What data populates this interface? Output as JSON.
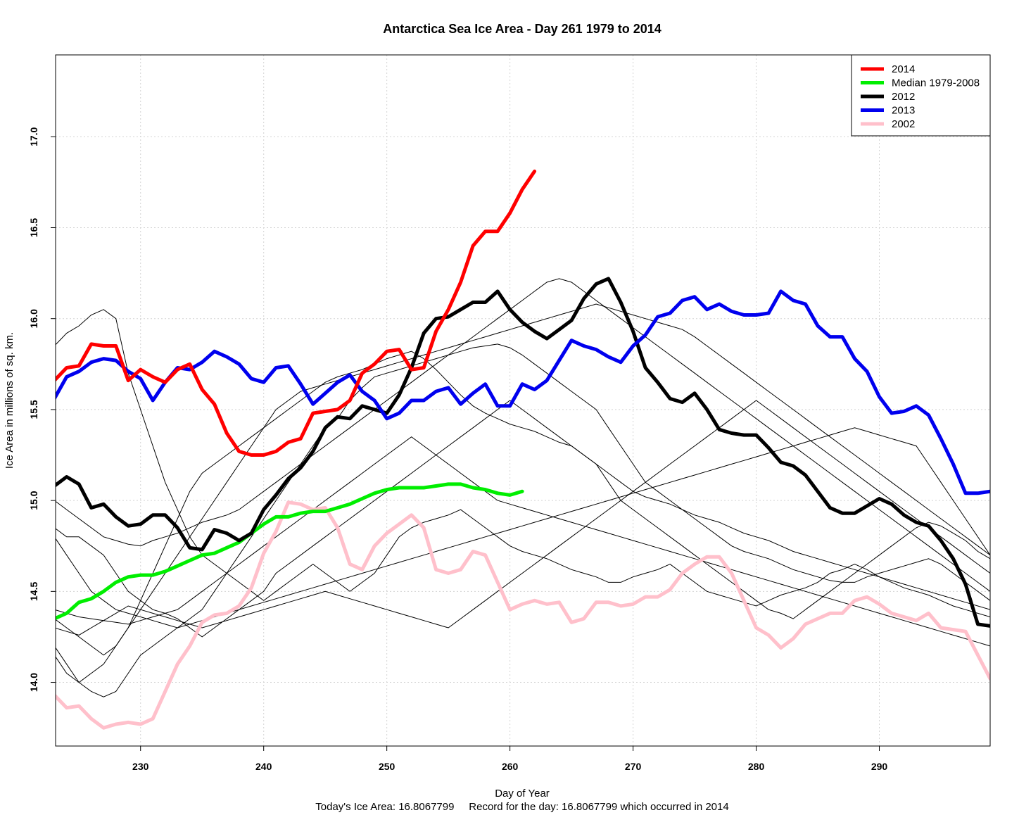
{
  "chart_data": {
    "type": "line",
    "title": "Antarctica Sea Ice Area - Day 261 1979 to 2014",
    "xlabel": "Day of Year",
    "ylabel": "Ice Area in millions of sq. km.",
    "footer": "Today's Ice Area: 16.8067799     Record for the day: 16.8067799 which occurred in 2014",
    "xlim": [
      223.1,
      299
    ],
    "ylim": [
      13.65,
      17.45
    ],
    "x_ticks": [
      230,
      240,
      250,
      260,
      270,
      280,
      290
    ],
    "x_tick_labels": [
      "230",
      "240",
      "250",
      "260",
      "270",
      "280",
      "290"
    ],
    "y_ticks": [
      14.0,
      14.5,
      15.0,
      15.5,
      16.0,
      16.5,
      17.0
    ],
    "y_tick_labels": [
      "14.0",
      "14.5",
      "15.0",
      "15.5",
      "16.0",
      "16.5",
      "17.0"
    ],
    "grid": true,
    "legend_position": "top-right",
    "legend": [
      {
        "label": "2014",
        "color": "#ff0000",
        "width": "thick"
      },
      {
        "label": "Median 1979-2008",
        "color": "#00ee00",
        "width": "thick"
      },
      {
        "label": "2012",
        "color": "#000000",
        "width": "thick"
      },
      {
        "label": "2013",
        "color": "#0000ee",
        "width": "thick"
      },
      {
        "label": "2002",
        "color": "#ffc0cb",
        "width": "thick"
      }
    ],
    "series": [
      {
        "name": "2014",
        "color": "#ff0000",
        "start_day": 223,
        "values": [
          15.66,
          15.73,
          15.74,
          15.86,
          15.85,
          15.85,
          15.66,
          15.72,
          15.68,
          15.65,
          15.72,
          15.75,
          15.61,
          15.53,
          15.37,
          15.27,
          15.25,
          15.25,
          15.27,
          15.32,
          15.34,
          15.48,
          15.49,
          15.5,
          15.55,
          15.7,
          15.75,
          15.82,
          15.83,
          15.72,
          15.73,
          15.93,
          16.05,
          16.2,
          16.4,
          16.48,
          16.48,
          16.58,
          16.71,
          16.81
        ]
      },
      {
        "name": "Median 1979-2008",
        "color": "#00ee00",
        "start_day": 223,
        "values": [
          14.35,
          14.38,
          14.44,
          14.46,
          14.5,
          14.55,
          14.58,
          14.59,
          14.59,
          14.61,
          14.64,
          14.67,
          14.7,
          14.71,
          14.74,
          14.77,
          14.82,
          14.87,
          14.91,
          14.91,
          14.93,
          14.94,
          14.94,
          14.96,
          14.98,
          15.01,
          15.04,
          15.06,
          15.07,
          15.07,
          15.07,
          15.08,
          15.09,
          15.09,
          15.07,
          15.06,
          15.04,
          15.03,
          15.05
        ]
      },
      {
        "name": "2012",
        "color": "#000000",
        "start_day": 223,
        "values": [
          15.08,
          15.13,
          15.09,
          14.96,
          14.98,
          14.91,
          14.86,
          14.87,
          14.92,
          14.92,
          14.85,
          14.74,
          14.73,
          14.84,
          14.82,
          14.78,
          14.82,
          14.95,
          15.03,
          15.12,
          15.18,
          15.27,
          15.4,
          15.46,
          15.45,
          15.52,
          15.5,
          15.48,
          15.58,
          15.73,
          15.92,
          16.0,
          16.01,
          16.05,
          16.09,
          16.09,
          16.15,
          16.05,
          15.98,
          15.93,
          15.89,
          15.94,
          15.99,
          16.11,
          16.19,
          16.22,
          16.09,
          15.93,
          15.73,
          15.65,
          15.56,
          15.54,
          15.59,
          15.5,
          15.39,
          15.37,
          15.36,
          15.36,
          15.29,
          15.21,
          15.19,
          15.14,
          15.05,
          14.96,
          14.93,
          14.93,
          14.97,
          15.01,
          14.98,
          14.92,
          14.88,
          14.86,
          14.78,
          14.68,
          14.54,
          14.32,
          14.31
        ]
      },
      {
        "name": "2013",
        "color": "#0000ee",
        "start_day": 223,
        "values": [
          15.56,
          15.68,
          15.71,
          15.76,
          15.78,
          15.77,
          15.71,
          15.67,
          15.55,
          15.65,
          15.73,
          15.72,
          15.76,
          15.82,
          15.79,
          15.75,
          15.67,
          15.65,
          15.73,
          15.74,
          15.64,
          15.53,
          15.59,
          15.65,
          15.69,
          15.6,
          15.55,
          15.45,
          15.48,
          15.55,
          15.55,
          15.6,
          15.62,
          15.53,
          15.59,
          15.64,
          15.52,
          15.52,
          15.64,
          15.61,
          15.66,
          15.77,
          15.88,
          15.85,
          15.83,
          15.79,
          15.76,
          15.85,
          15.91,
          16.01,
          16.03,
          16.1,
          16.12,
          16.05,
          16.08,
          16.04,
          16.02,
          16.02,
          16.03,
          16.15,
          16.1,
          16.08,
          15.96,
          15.9,
          15.9,
          15.78,
          15.71,
          15.57,
          15.48,
          15.49,
          15.52,
          15.47,
          15.34,
          15.2,
          15.04,
          15.04,
          15.05
        ]
      },
      {
        "name": "2002",
        "color": "#ffc0cb",
        "start_day": 223,
        "values": [
          13.93,
          13.86,
          13.87,
          13.8,
          13.75,
          13.77,
          13.78,
          13.77,
          13.8,
          13.95,
          14.1,
          14.2,
          14.33,
          14.37,
          14.38,
          14.42,
          14.52,
          14.71,
          14.83,
          14.99,
          14.98,
          14.95,
          14.96,
          14.85,
          14.65,
          14.62,
          14.75,
          14.82,
          14.87,
          14.92,
          14.85,
          14.62,
          14.6,
          14.62,
          14.72,
          14.7,
          14.55,
          14.4,
          14.43,
          14.45,
          14.43,
          14.44,
          14.33,
          14.35,
          14.44,
          14.44,
          14.42,
          14.43,
          14.47,
          14.47,
          14.51,
          14.6,
          14.65,
          14.69,
          14.69,
          14.6,
          14.45,
          14.3,
          14.26,
          14.19,
          14.24,
          14.32,
          14.35,
          14.38,
          14.38,
          14.45,
          14.47,
          14.43,
          14.38,
          14.36,
          14.34,
          14.38,
          14.3,
          14.29,
          14.28,
          14.15,
          14.02
        ]
      }
    ],
    "background_years": [
      {
        "start_day": 223,
        "values": [
          14.85,
          14.8,
          14.8,
          14.75,
          14.7,
          14.6,
          14.5,
          14.45,
          14.4,
          14.38,
          14.35,
          14.3,
          14.25,
          14.3,
          14.35,
          14.4,
          14.45,
          14.5,
          14.6,
          14.65,
          14.7,
          14.75,
          14.8,
          14.85,
          14.9,
          14.95,
          15.0,
          15.05,
          15.1,
          15.15,
          15.2,
          15.25,
          15.3,
          15.35,
          15.4,
          15.45,
          15.5,
          15.55,
          15.5,
          15.45,
          15.4,
          15.35,
          15.3,
          15.25,
          15.2,
          15.1,
          15.0,
          14.95,
          14.9,
          14.85,
          14.8,
          14.75,
          14.7,
          14.65,
          14.6,
          14.55,
          14.5,
          14.45,
          14.4,
          14.38,
          14.35,
          14.4,
          14.45,
          14.5,
          14.55,
          14.6,
          14.65,
          14.7,
          14.75,
          14.8,
          14.85,
          14.88,
          14.86,
          14.82,
          14.78,
          14.72,
          14.68
        ]
      },
      {
        "start_day": 223,
        "values": [
          15.85,
          15.92,
          15.96,
          16.02,
          16.05,
          16.0,
          15.7,
          15.5,
          15.3,
          15.1,
          14.95,
          14.8,
          14.7,
          14.65,
          14.6,
          14.55,
          14.5,
          14.45,
          14.5,
          14.55,
          14.6,
          14.65,
          14.6,
          14.55,
          14.5,
          14.55,
          14.6,
          14.7,
          14.8,
          14.85,
          14.88,
          14.9,
          14.92,
          14.95,
          14.9,
          14.85,
          14.8,
          14.75,
          14.72,
          14.7,
          14.68,
          14.65,
          14.62,
          14.6,
          14.58,
          14.55,
          14.55,
          14.58,
          14.6,
          14.62,
          14.65,
          14.6,
          14.55,
          14.5,
          14.48,
          14.46,
          14.44,
          14.42,
          14.45,
          14.48,
          14.5,
          14.52,
          14.55,
          14.6,
          14.62,
          14.65,
          14.62,
          14.58,
          14.55,
          14.52,
          14.5,
          14.48,
          14.45,
          14.42,
          14.4,
          14.38,
          14.36
        ]
      },
      {
        "start_day": 223,
        "values": [
          14.15,
          14.05,
          14.0,
          13.95,
          13.92,
          13.95,
          14.05,
          14.15,
          14.2,
          14.25,
          14.3,
          14.35,
          14.4,
          14.5,
          14.6,
          14.7,
          14.8,
          14.9,
          15.0,
          15.1,
          15.2,
          15.3,
          15.4,
          15.45,
          15.55,
          15.62,
          15.68,
          15.7,
          15.72,
          15.74,
          15.76,
          15.78,
          15.8,
          15.82,
          15.84,
          15.85,
          15.86,
          15.84,
          15.8,
          15.75,
          15.7,
          15.65,
          15.6,
          15.55,
          15.5,
          15.4,
          15.3,
          15.2,
          15.1,
          15.05,
          15.0,
          14.95,
          14.9,
          14.85,
          14.8,
          14.75,
          14.72,
          14.7,
          14.68,
          14.65,
          14.62,
          14.6,
          14.58,
          14.56,
          14.55,
          14.55,
          14.58,
          14.6,
          14.62,
          14.64,
          14.66,
          14.68,
          14.65,
          14.6,
          14.55,
          14.5,
          14.45
        ]
      },
      {
        "start_day": 223,
        "values": [
          14.35,
          14.3,
          14.25,
          14.2,
          14.15,
          14.2,
          14.3,
          14.45,
          14.6,
          14.75,
          14.9,
          15.05,
          15.15,
          15.2,
          15.25,
          15.3,
          15.35,
          15.4,
          15.45,
          15.5,
          15.55,
          15.6,
          15.65,
          15.68,
          15.7,
          15.72,
          15.75,
          15.78,
          15.8,
          15.82,
          15.78,
          15.72,
          15.65,
          15.58,
          15.52,
          15.48,
          15.45,
          15.42,
          15.4,
          15.38,
          15.35,
          15.32,
          15.3,
          15.25,
          15.2,
          15.15,
          15.1,
          15.05,
          15.02,
          15.0,
          14.98,
          14.95,
          14.92,
          14.9,
          14.88,
          14.85,
          14.82,
          14.8,
          14.78,
          14.75,
          14.72,
          14.7,
          14.68,
          14.66,
          14.64,
          14.62,
          14.6,
          14.58,
          14.56,
          14.54,
          14.52,
          14.5,
          14.48,
          14.46,
          14.44,
          14.42,
          14.4
        ]
      },
      {
        "start_day": 223,
        "values": [
          15.0,
          14.95,
          14.9,
          14.85,
          14.8,
          14.78,
          14.76,
          14.75,
          14.78,
          14.8,
          14.82,
          14.85,
          14.88,
          14.9,
          14.92,
          14.95,
          15.0,
          15.05,
          15.1,
          15.15,
          15.2,
          15.25,
          15.3,
          15.35,
          15.4,
          15.45,
          15.5,
          15.55,
          15.6,
          15.65,
          15.7,
          15.75,
          15.8,
          15.85,
          15.9,
          15.95,
          16.0,
          16.05,
          16.1,
          16.15,
          16.2,
          16.22,
          16.2,
          16.15,
          16.1,
          16.05,
          16.0,
          15.95,
          15.9,
          15.85,
          15.8,
          15.75,
          15.7,
          15.65,
          15.6,
          15.55,
          15.5,
          15.45,
          15.4,
          15.35,
          15.3,
          15.25,
          15.2,
          15.15,
          15.1,
          15.05,
          15.0,
          14.95,
          14.9,
          14.85,
          14.8,
          14.75,
          14.7,
          14.65,
          14.6,
          14.55,
          14.5
        ]
      },
      {
        "start_day": 223,
        "values": [
          14.4,
          14.38,
          14.36,
          14.35,
          14.34,
          14.33,
          14.32,
          14.34,
          14.36,
          14.38,
          14.4,
          14.45,
          14.5,
          14.55,
          14.6,
          14.65,
          14.7,
          14.75,
          14.8,
          14.85,
          14.9,
          14.95,
          15.0,
          15.05,
          15.1,
          15.15,
          15.2,
          15.25,
          15.3,
          15.35,
          15.3,
          15.25,
          15.2,
          15.15,
          15.1,
          15.05,
          15.0,
          14.98,
          14.96,
          14.94,
          14.92,
          14.9,
          14.88,
          14.86,
          14.84,
          14.82,
          14.8,
          14.78,
          14.76,
          14.74,
          14.72,
          14.7,
          14.68,
          14.66,
          14.64,
          14.62,
          14.6,
          14.58,
          14.56,
          14.54,
          14.52,
          14.5,
          14.48,
          14.46,
          14.44,
          14.42,
          14.4,
          14.38,
          14.36,
          14.34,
          14.32,
          14.3,
          14.28,
          14.26,
          14.24,
          14.22,
          14.2
        ]
      },
      {
        "start_day": 223,
        "values": [
          14.2,
          14.1,
          14.0,
          14.05,
          14.1,
          14.2,
          14.3,
          14.4,
          14.5,
          14.6,
          14.7,
          14.8,
          14.9,
          15.0,
          15.1,
          15.2,
          15.3,
          15.4,
          15.5,
          15.55,
          15.6,
          15.62,
          15.64,
          15.66,
          15.68,
          15.7,
          15.72,
          15.74,
          15.76,
          15.78,
          15.8,
          15.82,
          15.84,
          15.86,
          15.88,
          15.9,
          15.92,
          15.94,
          15.96,
          15.98,
          16.0,
          16.02,
          16.04,
          16.06,
          16.08,
          16.06,
          16.04,
          16.02,
          16.0,
          15.98,
          15.96,
          15.94,
          15.9,
          15.85,
          15.8,
          15.75,
          15.7,
          15.65,
          15.6,
          15.55,
          15.5,
          15.45,
          15.4,
          15.35,
          15.3,
          15.25,
          15.2,
          15.15,
          15.1,
          15.05,
          15.0,
          14.95,
          14.9,
          14.85,
          14.8,
          14.75,
          14.7
        ]
      },
      {
        "start_day": 223,
        "values": [
          14.8,
          14.7,
          14.6,
          14.5,
          14.45,
          14.4,
          14.38,
          14.36,
          14.34,
          14.32,
          14.3,
          14.32,
          14.34,
          14.36,
          14.38,
          14.4,
          14.42,
          14.44,
          14.46,
          14.48,
          14.5,
          14.52,
          14.54,
          14.56,
          14.58,
          14.6,
          14.62,
          14.64,
          14.66,
          14.68,
          14.7,
          14.72,
          14.74,
          14.76,
          14.78,
          14.8,
          14.82,
          14.84,
          14.86,
          14.88,
          14.9,
          14.92,
          14.94,
          14.96,
          14.98,
          15.0,
          15.02,
          15.04,
          15.06,
          15.08,
          15.1,
          15.12,
          15.14,
          15.16,
          15.18,
          15.2,
          15.22,
          15.24,
          15.26,
          15.28,
          15.3,
          15.32,
          15.34,
          15.36,
          15.38,
          15.4,
          15.38,
          15.36,
          15.34,
          15.32,
          15.3,
          15.2,
          15.1,
          15.0,
          14.9,
          14.8,
          14.7
        ]
      },
      {
        "start_day": 223,
        "values": [
          14.3,
          14.28,
          14.26,
          14.3,
          14.34,
          14.38,
          14.42,
          14.4,
          14.38,
          14.36,
          14.34,
          14.32,
          14.3,
          14.32,
          14.34,
          14.36,
          14.38,
          14.4,
          14.42,
          14.44,
          14.46,
          14.48,
          14.5,
          14.48,
          14.46,
          14.44,
          14.42,
          14.4,
          14.38,
          14.36,
          14.34,
          14.32,
          14.3,
          14.35,
          14.4,
          14.45,
          14.5,
          14.55,
          14.6,
          14.65,
          14.7,
          14.75,
          14.8,
          14.85,
          14.9,
          14.95,
          15.0,
          15.05,
          15.1,
          15.15,
          15.2,
          15.25,
          15.3,
          15.35,
          15.4,
          15.45,
          15.5,
          15.55,
          15.5,
          15.45,
          15.4,
          15.35,
          15.3,
          15.25,
          15.2,
          15.15,
          15.1,
          15.05,
          15.0,
          14.95,
          14.9,
          14.85,
          14.8,
          14.75,
          14.7,
          14.65,
          14.6
        ]
      }
    ]
  }
}
